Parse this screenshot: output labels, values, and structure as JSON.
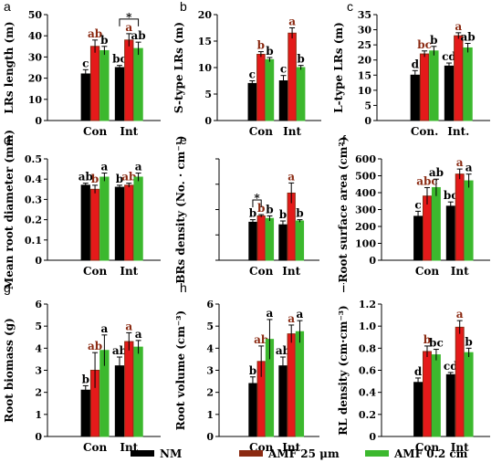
{
  "legend": [
    {
      "name": "NM",
      "color": "#000000"
    },
    {
      "name": "AMF 25 μm",
      "color": "#8b2a12"
    },
    {
      "name": "AMF 0.2 cm",
      "color": "#3cb82e"
    }
  ],
  "colors": {
    "series": [
      "#000000",
      "#8b2a12",
      "#3cb82e"
    ],
    "red_bar_fill": "#e41a1a",
    "text": "#000000"
  },
  "chart_data": [
    {
      "type": "bar",
      "panel": "a",
      "ylabel": "LRs length (m)",
      "categories": [
        "Con",
        "Int"
      ],
      "ylim": [
        0,
        50
      ],
      "yticks": [
        "0",
        "10",
        "20",
        "30",
        "40",
        "50"
      ],
      "series": [
        {
          "name": "NM",
          "values": [
            22,
            25
          ],
          "errors": [
            2,
            1
          ],
          "labels": [
            "c",
            "bc"
          ]
        },
        {
          "name": "AMF 25 μm",
          "values": [
            35,
            38
          ],
          "errors": [
            3,
            3
          ],
          "labels": [
            "ab",
            "a"
          ]
        },
        {
          "name": "AMF 0.2 cm",
          "values": [
            33,
            34
          ],
          "errors": [
            2,
            3
          ],
          "labels": [
            "b",
            "ab"
          ]
        }
      ],
      "annotations": [
        {
          "text": "*",
          "group": 1,
          "from": 0,
          "to": 2
        }
      ]
    },
    {
      "type": "bar",
      "panel": "b",
      "ylabel": "S-type LRs (m)",
      "categories": [
        "Con",
        "Int"
      ],
      "ylim": [
        0,
        20
      ],
      "yticks": [
        "0",
        "5",
        "10",
        "15",
        "20"
      ],
      "series": [
        {
          "name": "NM",
          "values": [
            7,
            7.5
          ],
          "errors": [
            0.5,
            1
          ],
          "labels": [
            "c",
            "c"
          ]
        },
        {
          "name": "AMF 25 μm",
          "values": [
            12.5,
            16.5
          ],
          "errors": [
            0.5,
            1
          ],
          "labels": [
            "b",
            "a"
          ]
        },
        {
          "name": "AMF 0.2 cm",
          "values": [
            11.5,
            10
          ],
          "errors": [
            0.4,
            0.4
          ],
          "labels": [
            "b",
            "b"
          ]
        }
      ],
      "annotations": []
    },
    {
      "type": "bar",
      "panel": "c",
      "ylabel": "L-type LRs (m)",
      "categories": [
        "Con.",
        "Int."
      ],
      "ylim": [
        0,
        35
      ],
      "yticks": [
        "0",
        "5",
        "10",
        "15",
        "20",
        "25",
        "30",
        "35"
      ],
      "series": [
        {
          "name": "NM",
          "values": [
            15,
            18
          ],
          "errors": [
            1.5,
            1
          ],
          "labels": [
            "d",
            "cd"
          ]
        },
        {
          "name": "AMF 25 μm",
          "values": [
            22,
            28
          ],
          "errors": [
            1,
            1
          ],
          "labels": [
            "bc",
            "a"
          ]
        },
        {
          "name": "AMF 0.2 cm",
          "values": [
            23,
            24
          ],
          "errors": [
            1.5,
            1.5
          ],
          "labels": [
            "b",
            "ab"
          ]
        }
      ],
      "annotations": []
    },
    {
      "type": "bar",
      "panel": "d",
      "ylabel": "Mean root diameter (mm)",
      "categories": [
        "Con",
        "Int"
      ],
      "ylim": [
        0,
        0.5
      ],
      "yticks": [
        "0",
        "0.1",
        "0.2",
        "0.3",
        "0.4",
        "0.5"
      ],
      "series": [
        {
          "name": "NM",
          "values": [
            0.37,
            0.36
          ],
          "errors": [
            0.01,
            0.01
          ],
          "labels": [
            "ab",
            "b"
          ]
        },
        {
          "name": "AMF 25 μm",
          "values": [
            0.35,
            0.37
          ],
          "errors": [
            0.02,
            0.01
          ],
          "labels": [
            "b",
            "ab"
          ]
        },
        {
          "name": "AMF 0.2 cm",
          "values": [
            0.41,
            0.41
          ],
          "errors": [
            0.02,
            0.02
          ],
          "labels": [
            "a",
            "a"
          ]
        }
      ],
      "annotations": []
    },
    {
      "type": "bar",
      "panel": "e",
      "ylabel": "BRs density (No. · cm⁻¹)",
      "categories": [
        "Con",
        "Int"
      ],
      "ylim": [
        0,
        8
      ],
      "yticks": [],
      "series": [
        {
          "name": "NM",
          "values": [
            3,
            2.8
          ],
          "errors": [
            0.2,
            0.3
          ],
          "labels": [
            "b",
            "b"
          ]
        },
        {
          "name": "AMF 25 μm",
          "values": [
            3.5,
            5.3
          ],
          "errors": [
            0.1,
            0.8
          ],
          "labels": [
            "b",
            "a"
          ]
        },
        {
          "name": "AMF 0.2 cm",
          "values": [
            3.3,
            3.1
          ],
          "errors": [
            0.2,
            0.1
          ],
          "labels": [
            "b",
            "b"
          ]
        }
      ],
      "annotations": [
        {
          "text": "*",
          "group": 0,
          "from": 0,
          "to": 1
        }
      ]
    },
    {
      "type": "bar",
      "panel": "f",
      "ylabel": "Root surface area (cm²)",
      "categories": [
        "Con",
        "Int"
      ],
      "ylim": [
        0,
        600
      ],
      "yticks": [
        "0",
        "100",
        "200",
        "300",
        "400",
        "500",
        "600"
      ],
      "series": [
        {
          "name": "NM",
          "values": [
            260,
            320
          ],
          "errors": [
            30,
            25
          ],
          "labels": [
            "c",
            "bc"
          ]
        },
        {
          "name": "AMF 25 μm",
          "values": [
            380,
            510
          ],
          "errors": [
            50,
            30
          ],
          "labels": [
            "abc",
            "a"
          ]
        },
        {
          "name": "AMF 0.2 cm",
          "values": [
            430,
            470
          ],
          "errors": [
            50,
            40
          ],
          "labels": [
            "ab",
            "a"
          ]
        }
      ],
      "annotations": []
    },
    {
      "type": "bar",
      "panel": "g",
      "ylabel": "Root biomass (g)",
      "categories": [
        "Con",
        "Int"
      ],
      "ylim": [
        0,
        6
      ],
      "yticks": [
        "0",
        "1",
        "2",
        "3",
        "4",
        "5",
        "6"
      ],
      "series": [
        {
          "name": "NM",
          "values": [
            2.1,
            3.2
          ],
          "errors": [
            0.2,
            0.4
          ],
          "labels": [
            "b",
            "ab"
          ]
        },
        {
          "name": "AMF 25 μm",
          "values": [
            3.0,
            4.3
          ],
          "errors": [
            0.8,
            0.4
          ],
          "labels": [
            "ab",
            "a"
          ]
        },
        {
          "name": "AMF 0.2 cm",
          "values": [
            3.9,
            4.05
          ],
          "errors": [
            0.7,
            0.3
          ],
          "labels": [
            "a",
            "a"
          ]
        }
      ],
      "annotations": []
    },
    {
      "type": "bar",
      "panel": "h",
      "ylabel": "Root volume (cm⁻³)",
      "categories": [
        "Con",
        "Int"
      ],
      "ylim": [
        0,
        6
      ],
      "yticks": [
        "0",
        "1",
        "2",
        "3",
        "4",
        "5",
        "6"
      ],
      "series": [
        {
          "name": "NM",
          "values": [
            2.4,
            3.2
          ],
          "errors": [
            0.3,
            0.4
          ],
          "labels": [
            "b",
            "ab"
          ]
        },
        {
          "name": "AMF 25 μm",
          "values": [
            3.4,
            4.65
          ],
          "errors": [
            0.7,
            0.4
          ],
          "labels": [
            "ab",
            "a"
          ]
        },
        {
          "name": "AMF 0.2 cm",
          "values": [
            4.4,
            4.75
          ],
          "errors": [
            0.9,
            0.5
          ],
          "labels": [
            "a",
            "a"
          ]
        }
      ],
      "annotations": []
    },
    {
      "type": "bar",
      "panel": "i",
      "ylabel": "RL density (cm·cm⁻³)",
      "categories": [
        "Con",
        "Int"
      ],
      "ylim": [
        0,
        1.2
      ],
      "yticks": [
        "0",
        "0.2",
        "0.4",
        "0.6",
        "0.8",
        "1.0",
        "1.2"
      ],
      "series": [
        {
          "name": "NM",
          "values": [
            0.49,
            0.56
          ],
          "errors": [
            0.04,
            0.02
          ],
          "labels": [
            "d",
            "cd"
          ]
        },
        {
          "name": "AMF 25 μm",
          "values": [
            0.77,
            0.99
          ],
          "errors": [
            0.05,
            0.06
          ],
          "labels": [
            "b",
            "a"
          ]
        },
        {
          "name": "AMF 0.2 cm",
          "values": [
            0.74,
            0.76
          ],
          "errors": [
            0.05,
            0.04
          ],
          "labels": [
            "bc",
            "b"
          ]
        }
      ],
      "annotations": []
    }
  ]
}
